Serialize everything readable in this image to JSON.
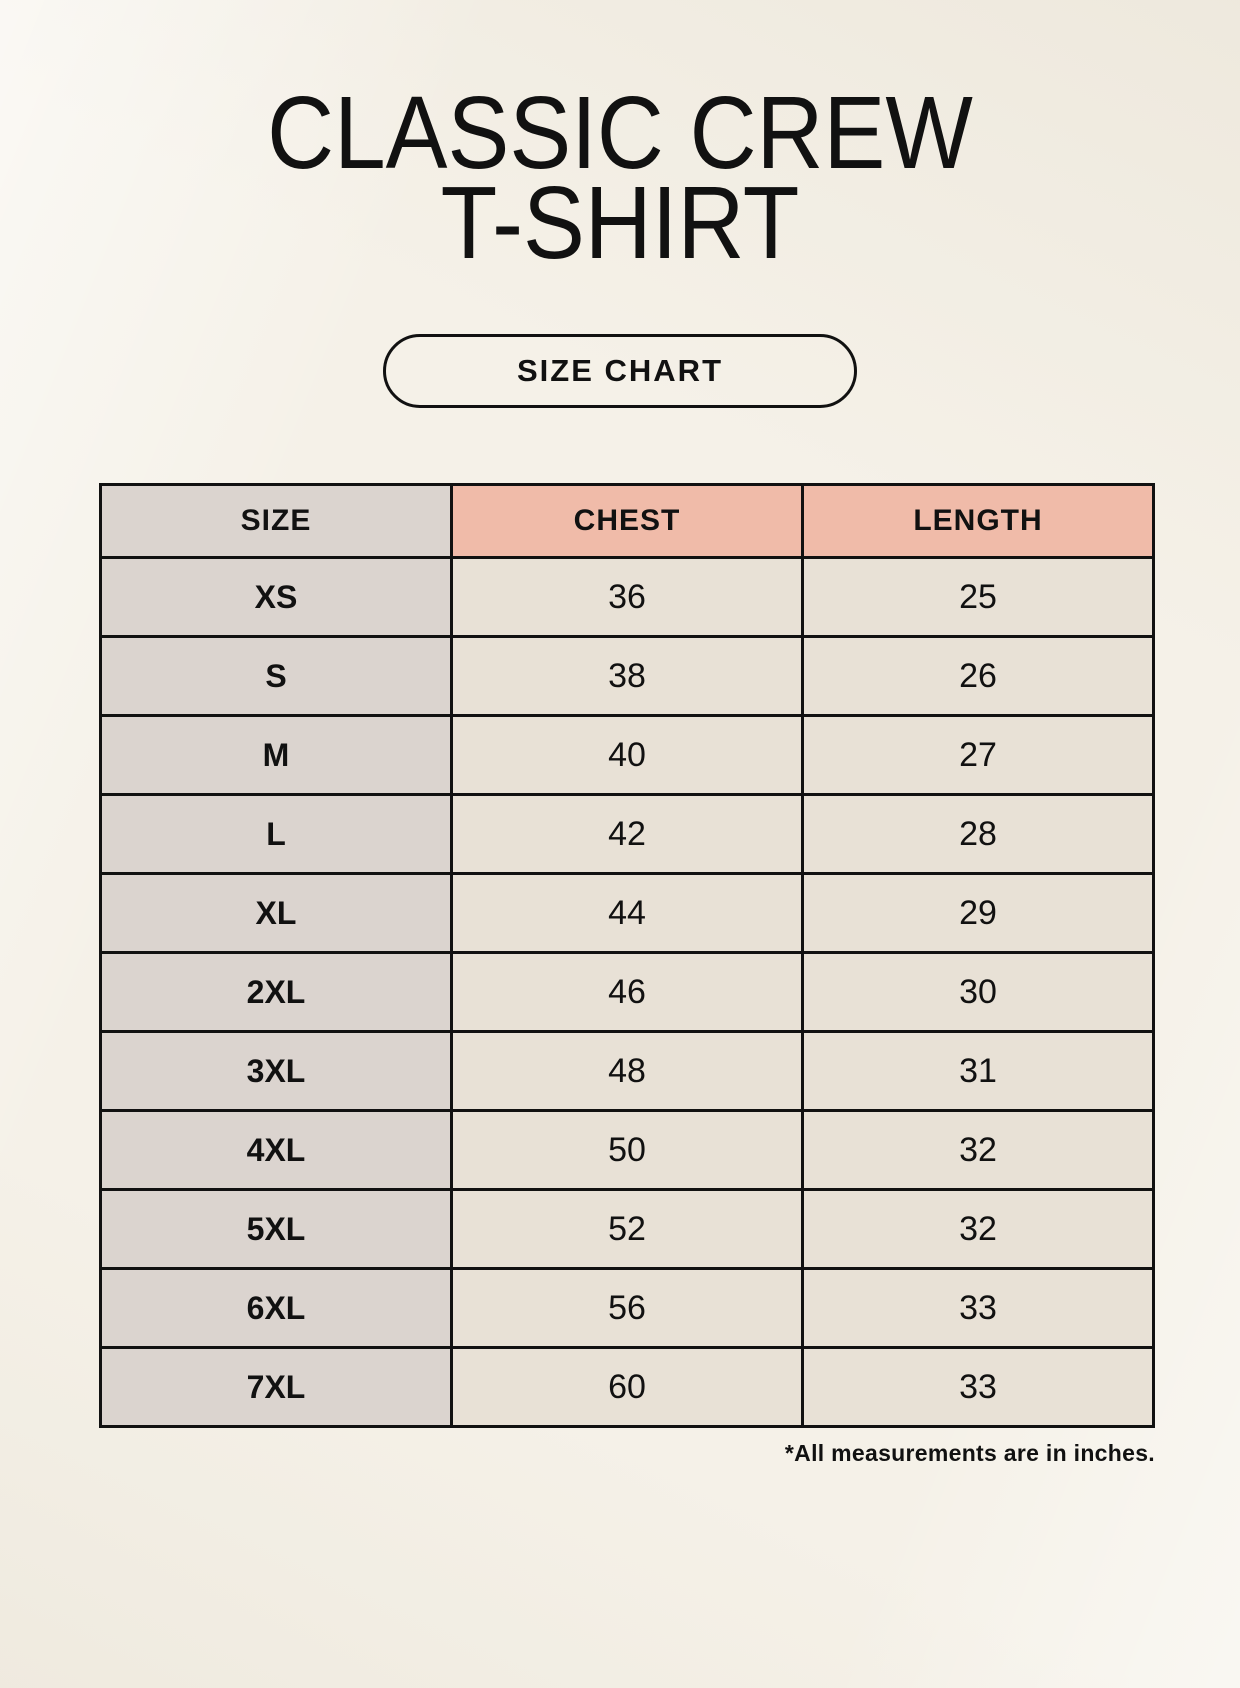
{
  "title": {
    "line1": "CLASSIC CREW",
    "line2": "T-SHIRT"
  },
  "button": {
    "label": "SIZE CHART"
  },
  "footnote": "*All measurements are in inches.",
  "colors": {
    "page_background": "#f5f1e8",
    "header_accent_pink": "#f0bba9",
    "size_column_gray": "#dbd4cf",
    "data_cell_beige": "#e8e1d6",
    "table_border": "#111111",
    "text": "#111111"
  },
  "chart_data": {
    "type": "table",
    "title": "Classic Crew T-Shirt Size Chart",
    "columns": [
      "SIZE",
      "CHEST",
      "LENGTH"
    ],
    "rows": [
      [
        "XS",
        "36",
        "25"
      ],
      [
        "S",
        "38",
        "26"
      ],
      [
        "M",
        "40",
        "27"
      ],
      [
        "L",
        "42",
        "28"
      ],
      [
        "XL",
        "44",
        "29"
      ],
      [
        "2XL",
        "46",
        "30"
      ],
      [
        "3XL",
        "48",
        "31"
      ],
      [
        "4XL",
        "50",
        "32"
      ],
      [
        "5XL",
        "52",
        "32"
      ],
      [
        "6XL",
        "56",
        "33"
      ],
      [
        "7XL",
        "60",
        "33"
      ]
    ],
    "units_note": "*All measurements are in inches."
  }
}
